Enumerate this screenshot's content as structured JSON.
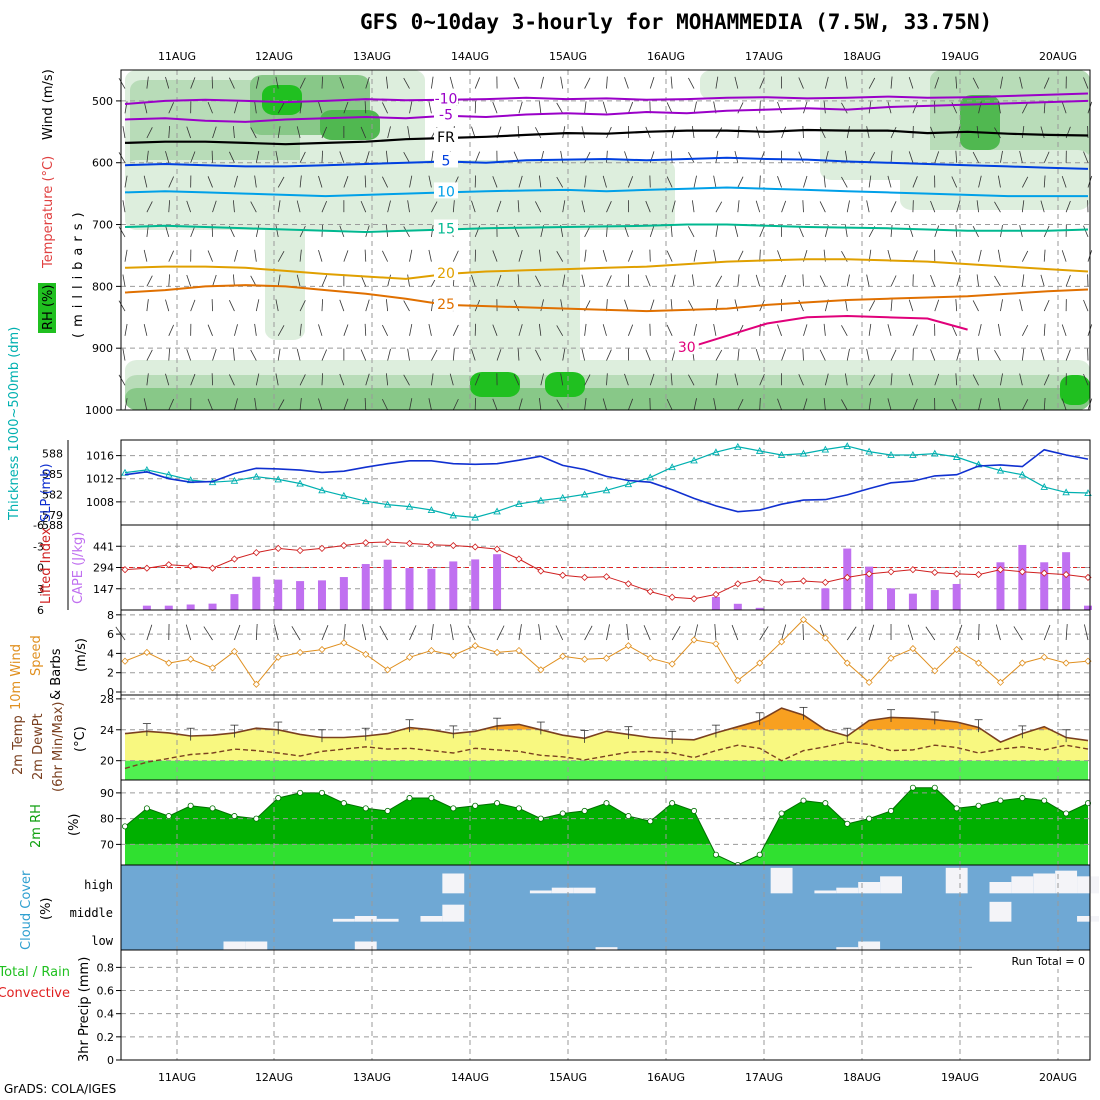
{
  "title": "GFS 0~10day 3-hourly for MOHAMMEDIA (7.5W, 33.75N)",
  "footer": "GrADS: COLA/IGES",
  "dates": [
    "11AUG",
    "12AUG",
    "13AUG",
    "14AUG",
    "15AUG",
    "16AUG",
    "17AUG",
    "18AUG",
    "19AUG",
    "20AUG"
  ],
  "chart_data": [
    {
      "type": "heatmap",
      "panel": "upper-air",
      "ylabel_parts": [
        "RH (%)",
        "Temperature (°C)",
        "Wind (m/s)",
        "(millibars)"
      ],
      "yticks": [
        500,
        600,
        700,
        800,
        900,
        1000
      ],
      "ylim": [
        1000,
        450
      ],
      "y_scale": "pressure",
      "contours": [
        {
          "level": "-10",
          "color": "#9a00c8",
          "p": [
            505,
            500,
            498,
            500,
            502,
            500,
            497,
            499,
            498,
            497,
            495,
            497,
            496,
            498,
            497,
            495,
            494,
            496,
            495,
            493,
            495,
            494,
            492,
            490,
            488
          ]
        },
        {
          "level": "-5",
          "color": "#9a00c8",
          "p": [
            530,
            528,
            532,
            534,
            530,
            528,
            526,
            528,
            524,
            526,
            522,
            520,
            522,
            518,
            520,
            516,
            514,
            512,
            514,
            510,
            508,
            506,
            504,
            502,
            500
          ]
        },
        {
          "level": "FR",
          "color": "#000000",
          "p": [
            568,
            566,
            566,
            568,
            570,
            568,
            566,
            562,
            560,
            558,
            555,
            552,
            553,
            550,
            548,
            548,
            550,
            547,
            548,
            548,
            552,
            550,
            553,
            555,
            556
          ]
        },
        {
          "level": "5",
          "color": "#0040e0",
          "p": [
            604,
            602,
            604,
            606,
            606,
            604,
            602,
            600,
            598,
            600,
            596,
            595,
            594,
            596,
            594,
            592,
            594,
            595,
            598,
            600,
            602,
            604,
            606,
            608,
            610
          ]
        },
        {
          "level": "10",
          "color": "#00a0e8",
          "p": [
            648,
            646,
            648,
            650,
            652,
            654,
            652,
            650,
            648,
            646,
            645,
            644,
            646,
            644,
            642,
            640,
            642,
            644,
            646,
            648,
            650,
            652,
            654,
            654,
            654
          ]
        },
        {
          "level": "15",
          "color": "#00b890",
          "p": [
            704,
            702,
            704,
            706,
            708,
            710,
            712,
            710,
            708,
            706,
            705,
            704,
            703,
            702,
            700,
            700,
            702,
            704,
            705,
            706,
            708,
            710,
            710,
            710,
            708
          ]
        },
        {
          "level": "20",
          "color": "#e0a000",
          "p": [
            770,
            768,
            768,
            770,
            775,
            780,
            784,
            788,
            780,
            776,
            774,
            772,
            770,
            768,
            764,
            760,
            758,
            756,
            756,
            758,
            760,
            764,
            768,
            772,
            776
          ]
        },
        {
          "level": "25",
          "color": "#e07000",
          "p": [
            810,
            806,
            800,
            798,
            800,
            806,
            812,
            820,
            830,
            832,
            834,
            836,
            838,
            840,
            838,
            836,
            830,
            826,
            822,
            820,
            818,
            816,
            812,
            808,
            805
          ]
        },
        {
          "level": "30",
          "color": "#e0007a",
          "p": [
            null,
            null,
            null,
            null,
            null,
            null,
            null,
            null,
            null,
            null,
            null,
            null,
            null,
            null,
            900,
            880,
            860,
            850,
            848,
            850,
            852,
            870,
            null,
            null,
            null
          ]
        }
      ],
      "rh_colors": [
        "#ddeedd",
        "#b8dcb8",
        "#88c888",
        "#50b850",
        "#20c020"
      ]
    },
    {
      "type": "line",
      "panel": "thickness-slp",
      "series": [
        {
          "name": "Thickness 1000~500mb (dm)",
          "color": "#00b0b0",
          "axis": "left",
          "yticks": [
            579,
            582,
            585,
            588
          ],
          "ylim": [
            577.5,
            590
          ],
          "values": [
            585.2,
            585.6,
            584.9,
            584.1,
            583.8,
            584.0,
            584.6,
            584.2,
            583.6,
            582.6,
            581.8,
            581.0,
            580.5,
            580.2,
            579.7,
            578.9,
            578.6,
            579.5,
            580.6,
            581.1,
            581.5,
            582.0,
            582.6,
            583.5,
            584.5,
            586.0,
            587.0,
            588.2,
            589.0,
            588.4,
            587.8,
            588.0,
            588.6,
            589.1,
            588.3,
            587.8,
            587.8,
            588.0,
            587.5,
            586.4,
            585.5,
            584.9,
            583.1,
            582.3,
            582.2
          ]
        },
        {
          "name": "SLP (mb)",
          "color": "#1030d0",
          "axis": "right",
          "yticks": [
            1008,
            1012,
            1016
          ],
          "ylim": [
            1004,
            1018.7
          ],
          "values": [
            1012.7,
            1013.2,
            1012.0,
            1011.4,
            1011.5,
            1012.9,
            1013.8,
            1013.7,
            1013.5,
            1013.1,
            1013.3,
            1014.0,
            1014.6,
            1015.1,
            1015.1,
            1014.6,
            1014.5,
            1014.6,
            1015.2,
            1015.9,
            1014.3,
            1013.6,
            1012.4,
            1011.7,
            1011.4,
            1010.1,
            1008.6,
            1007.3,
            1006.3,
            1006.6,
            1007.6,
            1008.3,
            1008.4,
            1009.2,
            1010.3,
            1011.3,
            1011.6,
            1012.5,
            1012.7,
            1014.2,
            1014.4,
            1014.1,
            1017.0,
            1016.1,
            1015.4
          ]
        }
      ]
    },
    {
      "type": "bar",
      "panel": "stability",
      "series": [
        {
          "name": "Lifted Index",
          "color": "#d02020",
          "yticks": [
            -6,
            -3,
            0,
            3,
            6
          ],
          "ylim": [
            6,
            -6
          ],
          "values": [
            0.3,
            0.1,
            -0.4,
            -0.2,
            0.1,
            -1.2,
            -2.1,
            -2.7,
            -2.4,
            -2.7,
            -3.1,
            -3.5,
            -3.6,
            -3.4,
            -3.2,
            -3.1,
            -2.9,
            -2.6,
            -1.2,
            0.5,
            1.1,
            1.4,
            1.3,
            2.3,
            3.4,
            4.2,
            4.4,
            3.8,
            2.3,
            1.7,
            2.1,
            1.9,
            2.1,
            1.4,
            0.9,
            0.6,
            0.3,
            0.7,
            0.9,
            1.0,
            0.3,
            0.6,
            0.8,
            1.0,
            1.4
          ]
        },
        {
          "name": "CAPE (J/kg)",
          "color": "#c070f0",
          "yticks": [
            147,
            294,
            441,
            588
          ],
          "ylim": [
            0,
            588
          ],
          "values": [
            0,
            30,
            30,
            38,
            44,
            110,
            230,
            210,
            200,
            205,
            228,
            318,
            348,
            290,
            285,
            336,
            350,
            386,
            0,
            0,
            0,
            0,
            0,
            0,
            0,
            0,
            0,
            90,
            43,
            15,
            0,
            0,
            150,
            425,
            300,
            150,
            113,
            138,
            180,
            0,
            330,
            450,
            330,
            400,
            30
          ]
        }
      ]
    },
    {
      "type": "line",
      "panel": "10m-wind",
      "ylabel": "10m Wind Speed & Barbs (m/s)",
      "series": [
        {
          "name": "10m Wind Speed",
          "color": "#e09020",
          "yticks": [
            0,
            2,
            4,
            6,
            8
          ],
          "ylim": [
            0,
            8.5
          ],
          "values": [
            3.2,
            4.1,
            3.0,
            3.4,
            2.5,
            4.2,
            0.8,
            3.6,
            4.1,
            4.4,
            5.1,
            3.9,
            2.3,
            3.6,
            4.3,
            3.8,
            4.8,
            4.1,
            4.3,
            2.3,
            3.7,
            3.4,
            3.5,
            4.8,
            3.5,
            2.9,
            5.4,
            5.0,
            1.2,
            3.0,
            5.2,
            7.5,
            5.6,
            3.0,
            1.0,
            3.5,
            4.5,
            2.2,
            4.4,
            3.0,
            1.0,
            3.0,
            3.6,
            3.0,
            3.2
          ]
        }
      ]
    },
    {
      "type": "area",
      "panel": "2m-temp",
      "ylabel": "2m Temp 2m DewPt (6hr Min/Max) (°C)",
      "yticks": [
        20,
        24,
        28
      ],
      "ylim": [
        17.5,
        28.5
      ],
      "series": [
        {
          "name": "2m Temp",
          "color": "#7a4020",
          "values": [
            23.5,
            23.8,
            23.6,
            23.2,
            23.3,
            23.6,
            24.2,
            24.0,
            23.4,
            23.0,
            23.0,
            23.2,
            23.5,
            24.3,
            24.0,
            23.5,
            23.8,
            24.5,
            24.7,
            24.0,
            23.3,
            22.9,
            23.8,
            23.4,
            23.0,
            22.8,
            22.7,
            23.6,
            24.4,
            25.2,
            26.8,
            25.9,
            24.0,
            23.2,
            25.2,
            25.6,
            25.5,
            25.3,
            25.0,
            24.3,
            22.4,
            23.5,
            24.4,
            23.0,
            22.6
          ]
        },
        {
          "name": "2m DewPt",
          "color": "#7a4020",
          "values": [
            19.0,
            19.8,
            20.3,
            20.8,
            21.0,
            21.5,
            21.3,
            21.0,
            20.6,
            21.2,
            21.5,
            21.8,
            21.5,
            21.6,
            21.3,
            21.0,
            21.6,
            21.4,
            21.2,
            20.7,
            20.5,
            20.1,
            20.6,
            21.1,
            21.2,
            21.0,
            20.4,
            21.3,
            22.0,
            21.6,
            20.0,
            21.3,
            21.8,
            22.4,
            22.1,
            21.3,
            21.4,
            22.0,
            21.7,
            21.0,
            21.5,
            21.8,
            21.4,
            22.0,
            21.5
          ]
        }
      ],
      "fill_colors": {
        "below_20": "#50f050",
        "20_to_24": "#f8f880",
        "above_24": "#f8a020"
      }
    },
    {
      "type": "area",
      "panel": "2m-rh",
      "ylabel": "2m RH (%)",
      "yticks": [
        70,
        80,
        90
      ],
      "ylim": [
        62,
        95
      ],
      "series": [
        {
          "name": "2m RH",
          "color": "#10a010",
          "values": [
            77,
            84,
            81,
            85,
            84,
            81,
            80,
            88,
            90,
            90,
            86,
            84,
            83,
            88,
            88,
            84,
            85,
            86,
            84,
            80,
            82,
            83,
            86,
            81,
            79,
            86,
            83,
            66,
            62,
            66,
            82,
            87,
            86,
            78,
            80,
            83,
            92,
            92,
            84,
            85,
            87,
            88,
            87,
            82,
            86
          ]
        }
      ],
      "fill_colors": {
        "below_70": "#30e030",
        "above_70": "#00b000"
      }
    },
    {
      "type": "bar",
      "panel": "cloud-cover",
      "ylabel": "Cloud Cover (%)",
      "yticks": [
        "low",
        "middle",
        "high"
      ],
      "background_color": "#6fa8d4",
      "bar_color": "#f4f4f8",
      "series": [
        {
          "name": "high",
          "values": [
            0,
            0,
            0,
            0,
            0,
            0,
            0,
            0,
            0,
            0,
            0,
            0,
            0,
            0,
            0,
            70,
            0,
            0,
            0,
            10,
            20,
            20,
            0,
            0,
            0,
            0,
            0,
            0,
            0,
            0,
            90,
            0,
            10,
            20,
            40,
            60,
            0,
            0,
            90,
            0,
            40,
            60,
            70,
            80,
            60
          ]
        },
        {
          "name": "middle",
          "values": [
            0,
            0,
            0,
            0,
            0,
            0,
            0,
            0,
            0,
            0,
            10,
            20,
            10,
            0,
            20,
            60,
            0,
            0,
            0,
            0,
            0,
            0,
            0,
            0,
            0,
            0,
            0,
            0,
            0,
            0,
            0,
            0,
            0,
            0,
            0,
            0,
            0,
            0,
            0,
            0,
            70,
            0,
            0,
            0,
            20
          ]
        },
        {
          "name": "low",
          "values": [
            0,
            0,
            0,
            0,
            0,
            30,
            30,
            0,
            0,
            0,
            0,
            30,
            0,
            0,
            0,
            0,
            0,
            0,
            0,
            0,
            0,
            0,
            10,
            0,
            0,
            0,
            0,
            0,
            0,
            0,
            0,
            0,
            0,
            10,
            30,
            0,
            0,
            0,
            0,
            0,
            0,
            0,
            0,
            0,
            0
          ]
        }
      ]
    },
    {
      "type": "bar",
      "panel": "precip",
      "ylabel_parts": [
        "Total / Rain",
        "Convective",
        "3hr Precip (mm)"
      ],
      "yticks": [
        0,
        0.2,
        0.4,
        0.6,
        0.8
      ],
      "ylim": [
        0,
        0.95
      ],
      "annotation": "Run Total = 0",
      "series": [
        {
          "name": "Total / Rain",
          "color": "#20c020",
          "values": []
        },
        {
          "name": "Convective",
          "color": "#e02020",
          "values": []
        }
      ]
    }
  ]
}
